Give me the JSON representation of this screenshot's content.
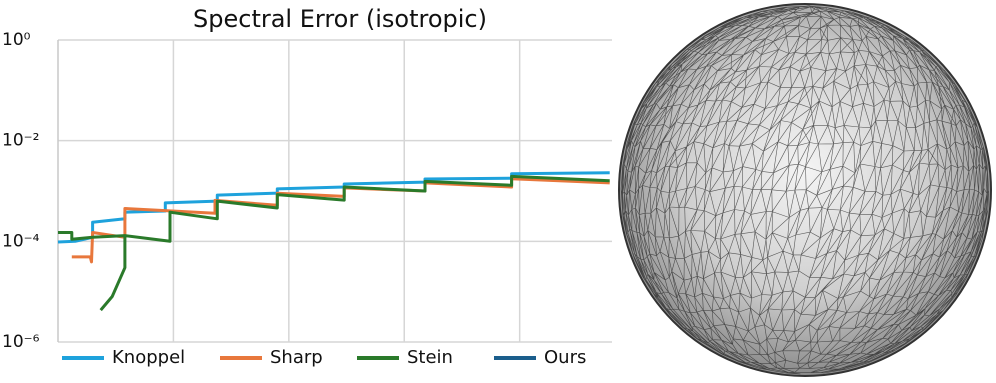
{
  "chart_data": {
    "type": "line",
    "title": "Spectral Error (isotropic)",
    "log_y": true,
    "grid": true,
    "xlim": [
      0,
      4.8
    ],
    "xticks": [
      1,
      2,
      3,
      4
    ],
    "ylim": [
      1e-06,
      1
    ],
    "yticks": [
      {
        "value": 1,
        "label": "10⁰"
      },
      {
        "value": 0.01,
        "label": "10⁻²"
      },
      {
        "value": 0.0001,
        "label": "10⁻⁴"
      },
      {
        "value": 1e-06,
        "label": "10⁻⁶"
      }
    ],
    "legend": "bottom",
    "series": [
      {
        "name": "Knoppel",
        "color": "#1ea2dc",
        "x": [
          0,
          0.15,
          0.3,
          0.3,
          0.58,
          0.58,
          0.93,
          0.93,
          1.38,
          1.38,
          1.9,
          1.9,
          2.48,
          2.48,
          3.18,
          3.18,
          3.93,
          3.93,
          4.78
        ],
        "values": [
          9.7e-05,
          0.0001,
          0.00012,
          0.00024,
          0.00028,
          0.00038,
          0.0004,
          0.00058,
          0.00063,
          0.00083,
          0.00091,
          0.0011,
          0.0012,
          0.00138,
          0.0015,
          0.00173,
          0.0018,
          0.0022,
          0.0023
        ]
      },
      {
        "name": "Sharp",
        "color": "#e8773c",
        "x": [
          0.12,
          0.28,
          0.29,
          0.3,
          0.58,
          0.58,
          1.36,
          1.36,
          1.9,
          1.9,
          2.48,
          2.48,
          3.18,
          3.18,
          3.93,
          3.93,
          4.78
        ],
        "values": [
          4.9e-05,
          4.9e-05,
          3.9e-05,
          0.00015,
          0.00012,
          0.00045,
          0.00036,
          0.00065,
          0.00052,
          0.0009,
          0.00078,
          0.00115,
          0.001,
          0.00145,
          0.0012,
          0.00175,
          0.00145
        ]
      },
      {
        "name": "Stein",
        "color": "#2a7a2a",
        "x": [
          0,
          0.12,
          0.12,
          0.3,
          0.58,
          0.97,
          0.97,
          1.38,
          1.38,
          1.9,
          1.9,
          2.48,
          2.48,
          3.18,
          3.18,
          3.93,
          3.93,
          4.78,
          null,
          0.37,
          0.47,
          0.58,
          0.58
        ],
        "values": [
          0.00015,
          0.00015,
          0.00011,
          0.00012,
          0.00013,
          0.0001,
          0.00038,
          0.00028,
          0.00063,
          0.00046,
          0.00085,
          0.00066,
          0.0012,
          0.001,
          0.00155,
          0.0013,
          0.00195,
          0.0016,
          null,
          4.3e-06,
          8e-06,
          3e-05,
          0.00012
        ]
      },
      {
        "name": "Ours",
        "color": "#1b5e8c",
        "x": [],
        "values": []
      }
    ]
  }
}
